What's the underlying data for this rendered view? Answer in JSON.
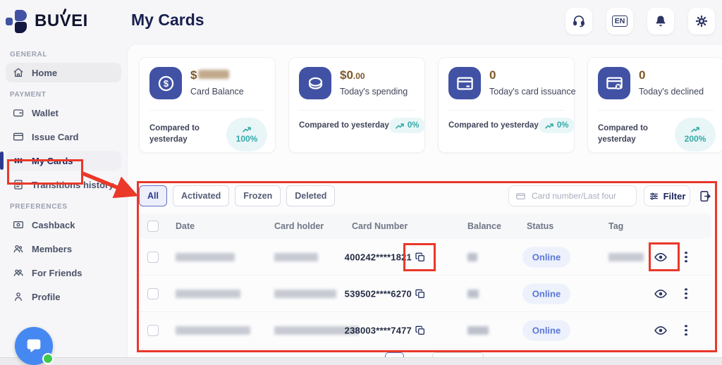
{
  "brand": {
    "name": "BUVEI"
  },
  "header": {
    "title": "My Cards",
    "buttons": [
      {
        "name": "support",
        "icon": "headset-icon"
      },
      {
        "name": "language",
        "label": "EN"
      },
      {
        "name": "notifications",
        "icon": "bell-icon"
      },
      {
        "name": "settings",
        "icon": "gear-icon"
      }
    ]
  },
  "sidebar": {
    "sections": [
      {
        "label": "GENERAL",
        "items": [
          {
            "label": "Home",
            "icon": "home-icon",
            "state": "hover"
          }
        ]
      },
      {
        "label": "PAYMENT",
        "items": [
          {
            "label": "Wallet",
            "icon": "wallet-icon"
          },
          {
            "label": "Issue Card",
            "icon": "issue-card-icon"
          },
          {
            "label": "My Cards",
            "icon": "my-cards-icon",
            "state": "active"
          },
          {
            "label": "Transitions history",
            "icon": "history-icon"
          }
        ]
      },
      {
        "label": "PREFERENCES",
        "items": [
          {
            "label": "Cashback",
            "icon": "cashback-icon"
          },
          {
            "label": "Members",
            "icon": "members-icon"
          },
          {
            "label": "For Friends",
            "icon": "friends-icon"
          },
          {
            "label": "Profile",
            "icon": "profile-icon"
          }
        ]
      }
    ]
  },
  "stats": [
    {
      "label": "Card Balance",
      "value": "$",
      "value_redacted": true,
      "icon": "dollar-circle-icon",
      "compare_text": "Compared to yesterday",
      "badge": "100%",
      "badge_layout": "stacked"
    },
    {
      "label": "Today's spending",
      "value": "$0",
      "value_decimals": ".00",
      "icon": "coin-icon",
      "compare_text": "Compared to yesterday",
      "badge": "0%",
      "badge_layout": "inline"
    },
    {
      "label": "Today's card issuance",
      "value": "0",
      "icon": "card-issuance-icon",
      "compare_text": "Compared to yesterday",
      "badge": "0%",
      "badge_layout": "inline"
    },
    {
      "label": "Today's declined",
      "value": "0",
      "icon": "card-declined-icon",
      "compare_text": "Compared to yesterday",
      "badge": "200%",
      "badge_layout": "stacked"
    }
  ],
  "filters": {
    "tabs": [
      {
        "label": "All",
        "active": true
      },
      {
        "label": "Activated",
        "active": false
      },
      {
        "label": "Frozen",
        "active": false
      },
      {
        "label": "Deleted",
        "active": false
      }
    ],
    "search_placeholder": "Card number/Last four",
    "filter_label": "Filter"
  },
  "table": {
    "columns": [
      "Date",
      "Card holder",
      "Card Number",
      "Balance",
      "Status",
      "Tag"
    ],
    "rows": [
      {
        "card_number": "400242****1821",
        "status": "Online",
        "date_redacted": true,
        "card_holder_redacted": true,
        "balance_redacted": true,
        "tag_redacted": true
      },
      {
        "card_number": "539502****6270",
        "status": "Online",
        "date_redacted": true,
        "card_holder_redacted": true,
        "balance_redacted": true,
        "tag_redacted": false
      },
      {
        "card_number": "238003****7477",
        "status": "Online",
        "date_redacted": true,
        "card_holder_redacted": true,
        "balance_redacted": true,
        "tag_redacted": false
      }
    ]
  },
  "annotation_color": "#ea3829",
  "colors": {
    "accent_indigo": "#4152a4",
    "navy": "#1b2559",
    "teal_badge": "#35a9a6",
    "status_blue": "#5b77d6",
    "value_brown": "#7d5a28"
  }
}
